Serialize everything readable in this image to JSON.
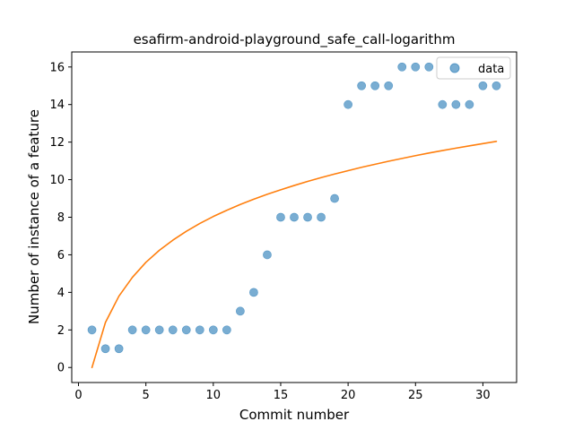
{
  "chart_data": {
    "type": "scatter",
    "title": "esafirm-android-playground_safe_call-logarithm",
    "xlabel": "Commit number",
    "ylabel": "Number of instance of a feature",
    "xlim": [
      -0.5,
      32.5
    ],
    "ylim": [
      -0.8,
      16.8
    ],
    "xticks": [
      0,
      5,
      10,
      15,
      20,
      25,
      30
    ],
    "yticks": [
      0,
      2,
      4,
      6,
      8,
      10,
      12,
      14,
      16
    ],
    "grid": false,
    "legend_position": "top-right",
    "legend": [
      "data"
    ],
    "colors": {
      "data": "#1f77b4",
      "fit": "#ff7f0e"
    },
    "series": [
      {
        "name": "data",
        "kind": "scatter",
        "x": [
          1,
          2,
          3,
          4,
          5,
          6,
          7,
          8,
          9,
          10,
          11,
          12,
          13,
          14,
          15,
          16,
          17,
          18,
          19,
          20,
          21,
          22,
          23,
          24,
          25,
          26,
          27,
          28,
          29,
          30,
          31
        ],
        "y": [
          2,
          1,
          1,
          2,
          2,
          2,
          2,
          2,
          2,
          2,
          2,
          3,
          4,
          6,
          8,
          8,
          8,
          8,
          9,
          14,
          15,
          15,
          15,
          16,
          16,
          16,
          14,
          14,
          14,
          15,
          15
        ]
      },
      {
        "kind": "line",
        "x": [
          1,
          2,
          3,
          4,
          5,
          6,
          7,
          8,
          9,
          10,
          11,
          12,
          13,
          14,
          15,
          16,
          17,
          18,
          19,
          20,
          21,
          22,
          23,
          24,
          25,
          26,
          27,
          28,
          29,
          30,
          31
        ],
        "y": [
          0.0,
          2.4,
          3.8,
          4.8,
          5.6,
          6.24,
          6.78,
          7.25,
          7.67,
          8.04,
          8.37,
          8.68,
          8.96,
          9.22,
          9.46,
          9.69,
          9.91,
          10.11,
          10.3,
          10.48,
          10.66,
          10.82,
          10.98,
          11.13,
          11.28,
          11.42,
          11.55,
          11.68,
          11.8,
          11.92,
          12.04
        ]
      }
    ]
  }
}
